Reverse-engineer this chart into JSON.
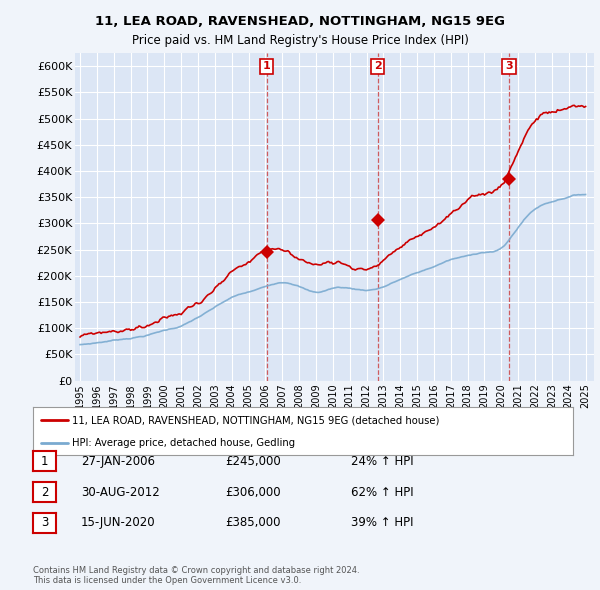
{
  "title": "11, LEA ROAD, RAVENSHEAD, NOTTINGHAM, NG15 9EG",
  "subtitle": "Price paid vs. HM Land Registry's House Price Index (HPI)",
  "ylim": [
    0,
    625000
  ],
  "yticks": [
    0,
    50000,
    100000,
    150000,
    200000,
    250000,
    300000,
    350000,
    400000,
    450000,
    500000,
    550000,
    600000
  ],
  "ytick_labels": [
    "£0",
    "£50K",
    "£100K",
    "£150K",
    "£200K",
    "£250K",
    "£300K",
    "£350K",
    "£400K",
    "£450K",
    "£500K",
    "£550K",
    "£600K"
  ],
  "background_color": "#f0f4fa",
  "plot_bg_color": "#dce6f5",
  "grid_color": "#ffffff",
  "red_line_color": "#cc0000",
  "blue_line_color": "#7aaad0",
  "sale_marker_color": "#cc0000",
  "sale1_date": 2006.07,
  "sale1_price": 245000,
  "sale2_date": 2012.66,
  "sale2_price": 306000,
  "sale3_date": 2020.46,
  "sale3_price": 385000,
  "vline_color": "#cc4444",
  "legend_label_red": "11, LEA ROAD, RAVENSHEAD, NOTTINGHAM, NG15 9EG (detached house)",
  "legend_label_blue": "HPI: Average price, detached house, Gedling",
  "table_entries": [
    {
      "num": "1",
      "date": "27-JAN-2006",
      "price": "£245,000",
      "change": "24% ↑ HPI"
    },
    {
      "num": "2",
      "date": "30-AUG-2012",
      "price": "£306,000",
      "change": "62% ↑ HPI"
    },
    {
      "num": "3",
      "date": "15-JUN-2020",
      "price": "£385,000",
      "change": "39% ↑ HPI"
    }
  ],
  "footer": "Contains HM Land Registry data © Crown copyright and database right 2024.\nThis data is licensed under the Open Government Licence v3.0.",
  "xlim_left": 1994.7,
  "xlim_right": 2025.5
}
